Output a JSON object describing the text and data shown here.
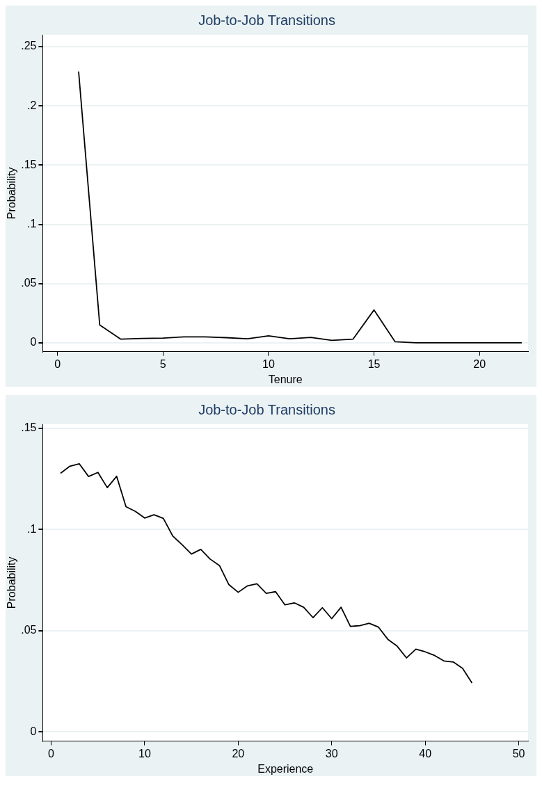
{
  "chart_data": [
    {
      "type": "line",
      "title": "Job-to-Job Transitions",
      "xlabel": "Tenure",
      "ylabel": "Probability",
      "grid": "y",
      "legend": false,
      "marker": "none",
      "series": [
        {
          "color": "#000000",
          "x": [
            1,
            2,
            3,
            4,
            5,
            6,
            7,
            8,
            9,
            10,
            11,
            12,
            13,
            14,
            15,
            16,
            17,
            18,
            19,
            20,
            21,
            22
          ],
          "values": [
            0.229,
            0.015,
            0.003,
            0.0036,
            0.0039,
            0.005,
            0.005,
            0.0043,
            0.0034,
            0.0059,
            0.0034,
            0.0045,
            0.002,
            0.003,
            0.0277,
            0.0008,
            0,
            0,
            0,
            0,
            0,
            0
          ]
        }
      ],
      "xlim": [
        -0.7,
        22.3
      ],
      "xticks": [
        0,
        5,
        10,
        15,
        20
      ],
      "ylim": [
        -0.0075,
        0.26
      ],
      "yticks": [
        {
          "value": 0,
          "label": "0"
        },
        {
          "value": 0.05,
          "label": ".05"
        },
        {
          "value": 0.1,
          "label": ".1"
        },
        {
          "value": 0.15,
          "label": ".15"
        },
        {
          "value": 0.2,
          "label": ".2"
        },
        {
          "value": 0.25,
          "label": ".25"
        }
      ]
    },
    {
      "type": "line",
      "title": "Job-to-Job Transitions",
      "xlabel": "Experience",
      "ylabel": "Probability",
      "grid": "y",
      "legend": false,
      "marker": "none",
      "series": [
        {
          "color": "#000000",
          "x": [
            1,
            2,
            3,
            4,
            5,
            6,
            7,
            8,
            9,
            10,
            11,
            12,
            13,
            14,
            15,
            16,
            17,
            18,
            19,
            20,
            21,
            22,
            23,
            24,
            25,
            26,
            27,
            28,
            29,
            30,
            31,
            32,
            33,
            34,
            35,
            36,
            37,
            38,
            39,
            40,
            41,
            42,
            43,
            44,
            45
          ],
          "values": [
            0.1278,
            0.1313,
            0.1325,
            0.1262,
            0.1282,
            0.1207,
            0.1263,
            0.1113,
            0.109,
            0.1057,
            0.1073,
            0.1055,
            0.0968,
            0.0925,
            0.0879,
            0.0902,
            0.0854,
            0.0822,
            0.0728,
            0.069,
            0.0722,
            0.0732,
            0.0685,
            0.0693,
            0.0628,
            0.0638,
            0.0616,
            0.0565,
            0.0614,
            0.056,
            0.0616,
            0.0522,
            0.0525,
            0.0537,
            0.0518,
            0.0458,
            0.0424,
            0.0366,
            0.0409,
            0.0396,
            0.0378,
            0.0351,
            0.0346,
            0.0314,
            0.0242
          ]
        }
      ],
      "xlim": [
        -0.9,
        51
      ],
      "xticks": [
        0,
        10,
        20,
        30,
        40,
        50
      ],
      "ylim": [
        -0.0045,
        0.152
      ],
      "yticks": [
        {
          "value": 0,
          "label": "0"
        },
        {
          "value": 0.05,
          "label": ".05"
        },
        {
          "value": 0.1,
          "label": ".1"
        },
        {
          "value": 0.15,
          "label": ".15"
        }
      ]
    }
  ]
}
